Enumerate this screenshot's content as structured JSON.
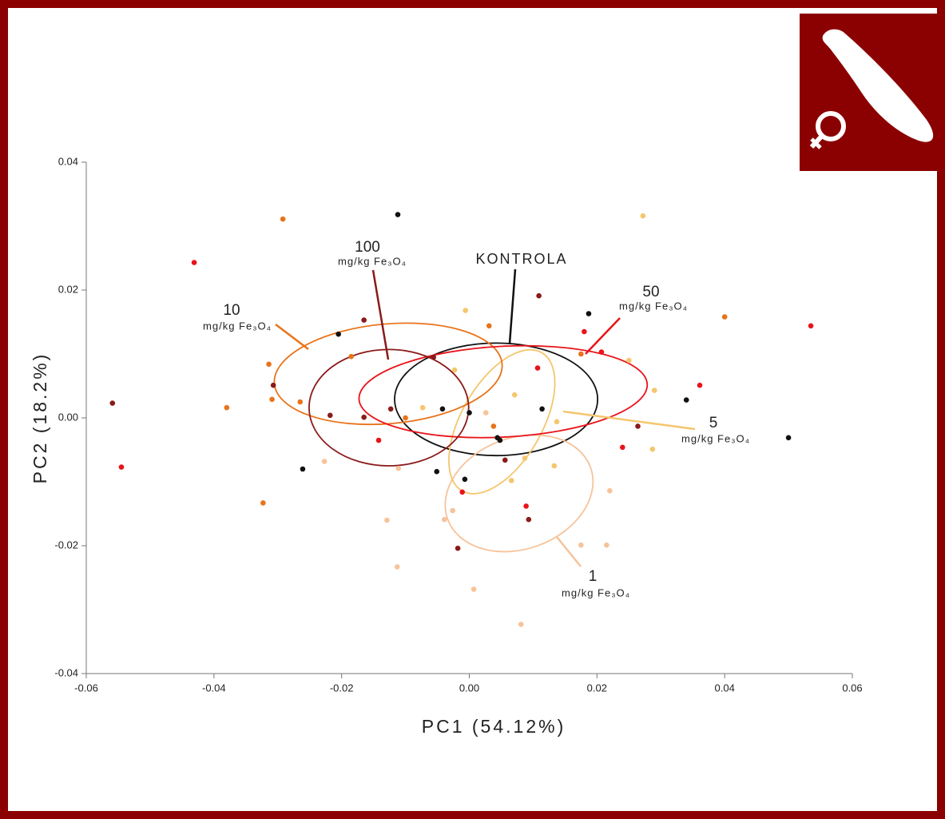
{
  "chart_data": {
    "type": "scatter",
    "xlabel": "PC1 (54.12%)",
    "ylabel": "PC2 (18.2%)",
    "unit": "mg/kg Fe₃O₄",
    "xlim": [
      -0.06,
      0.06
    ],
    "ylim": [
      -0.04,
      0.04
    ],
    "xticks": [
      -0.06,
      -0.04,
      -0.02,
      {
        "value": 0,
        "label": "0.00"
      },
      0.02,
      0.04,
      0.06
    ],
    "yticks": [
      -0.04,
      -0.02,
      {
        "value": 0,
        "label": "0.00"
      },
      0.02,
      0.04
    ],
    "series": [
      {
        "name": "KONTROLA",
        "color": "#111111",
        "x": [
          -0.0112,
          -0.0205,
          0.0187,
          -0.0042,
          0.0,
          0.0114,
          0.0044,
          0.0048,
          0.034,
          0.05,
          -0.0261,
          -0.0051,
          -0.0007
        ],
        "y": [
          0.0318,
          0.0131,
          0.0163,
          0.0014,
          0.0008,
          0.0014,
          -0.0031,
          -0.0035,
          0.0028,
          -0.0031,
          -0.008,
          -0.0084,
          -0.0096
        ],
        "ellipse": {
          "center": [
            0.0042,
            0.0029
          ],
          "radii": [
            0.0159,
            0.0088
          ],
          "angle": 0
        }
      },
      {
        "name": "1",
        "color": "#f6c39a",
        "x": [
          -0.0227,
          -0.0129,
          -0.0113,
          -0.0039,
          -0.0026,
          0.0007,
          0.0081,
          0.0175,
          0.0215,
          0.022,
          -0.0111,
          0.0026
        ],
        "y": [
          -0.0068,
          -0.016,
          -0.0233,
          -0.0159,
          -0.0145,
          -0.0268,
          -0.0323,
          -0.0199,
          -0.0199,
          -0.0114,
          -0.0079,
          0.0008
        ],
        "ellipse": {
          "center": [
            0.0078,
            -0.0118
          ],
          "radii": [
            0.0119,
            0.0087
          ],
          "angle": 20
        }
      },
      {
        "name": "5",
        "color": "#f4c66e",
        "x": [
          0.0272,
          -0.0006,
          -0.0023,
          -0.0073,
          0.0071,
          0.0137,
          0.025,
          0.029,
          0.0287,
          0.0133,
          0.0066,
          0.0087
        ],
        "y": [
          0.0316,
          0.0168,
          0.0075,
          0.0016,
          0.0036,
          -0.0006,
          0.009,
          0.0043,
          -0.0049,
          -0.0075,
          -0.0098,
          -0.0063
        ],
        "ellipse": {
          "center": [
            0.0051,
            -0.0006
          ],
          "radii": [
            0.0125,
            0.0063
          ],
          "angle": 60
        }
      },
      {
        "name": "10",
        "color": "#e8731a",
        "x": [
          -0.0292,
          0.04,
          0.0031,
          -0.0185,
          -0.0314,
          -0.0309,
          -0.0265,
          -0.038,
          -0.01,
          0.0038,
          -0.0323,
          0.0175
        ],
        "y": [
          0.0311,
          0.0158,
          0.0144,
          0.0096,
          0.0084,
          0.0029,
          0.0025,
          0.0016,
          0.0,
          -0.0013,
          -0.0133,
          0.01
        ],
        "ellipse": {
          "center": [
            -0.0127,
            0.0069
          ],
          "radii": [
            0.0179,
            0.0078
          ],
          "angle": 5
        }
      },
      {
        "name": "50",
        "color": "#e8141a",
        "x": [
          -0.0431,
          0.018,
          0.0207,
          0.0107,
          0.0361,
          0.0535,
          -0.0545,
          -0.0142,
          0.024,
          -0.0011,
          0.0089
        ],
        "y": [
          0.0243,
          0.0135,
          0.0103,
          0.0078,
          0.0051,
          0.0144,
          -0.0077,
          -0.0035,
          -0.0046,
          -0.0116,
          -0.0138
        ],
        "ellipse": {
          "center": [
            0.0053,
            0.0041
          ],
          "radii": [
            0.0226,
            0.0071
          ],
          "angle": 3
        }
      },
      {
        "name": "100",
        "color": "#8b1a1a",
        "x": [
          -0.0559,
          -0.0165,
          0.0109,
          -0.0307,
          -0.0218,
          -0.0165,
          -0.0123,
          -0.0056,
          0.0056,
          0.0264,
          0.0093,
          -0.0018
        ],
        "y": [
          0.0023,
          0.0153,
          0.0191,
          0.0051,
          0.0004,
          0.0001,
          0.0014,
          0.0095,
          -0.0066,
          -0.0013,
          -0.0159,
          -0.0204
        ],
        "ellipse": {
          "center": [
            -0.0126,
            0.0016
          ],
          "radii": [
            0.0125,
            0.0091
          ],
          "angle": 0
        }
      }
    ]
  }
}
